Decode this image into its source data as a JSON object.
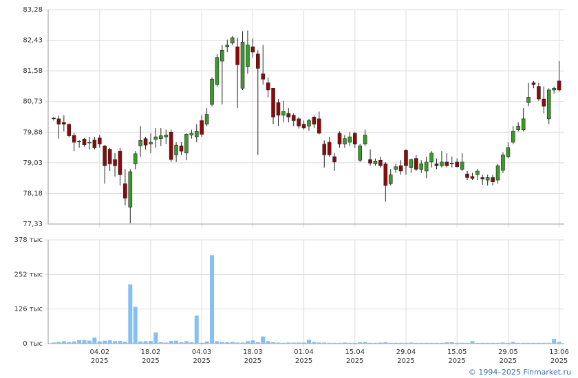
{
  "chart_data": [
    {
      "type": "candlestick",
      "up_color": "#3a9a2a",
      "down_color": "#8b0b0b",
      "grid": true,
      "ylim": [
        77.33,
        83.28
      ],
      "yticks": [
        {
          "value": 77.33,
          "label": "77,33"
        },
        {
          "value": 78.18,
          "label": "78,18"
        },
        {
          "value": 79.03,
          "label": "79,03"
        },
        {
          "value": 79.88,
          "label": "79,88"
        },
        {
          "value": 80.73,
          "label": "80,73"
        },
        {
          "value": 81.58,
          "label": "81,58"
        },
        {
          "value": 82.43,
          "label": "82,43"
        },
        {
          "value": 83.28,
          "label": "83,28"
        }
      ],
      "open": [
        80.27,
        80.25,
        80.15,
        80.1,
        79.79,
        79.63,
        79.69,
        79.58,
        79.66,
        79.72,
        79.5,
        79.4,
        79.12,
        79.35,
        78.45,
        77.8,
        79.0,
        79.5,
        79.7,
        79.55,
        79.68,
        79.7,
        79.75,
        79.88,
        79.25,
        79.5,
        79.3,
        79.8,
        79.75,
        80.2,
        80.1,
        80.65,
        81.2,
        81.85,
        82.25,
        82.35,
        82.25,
        81.1,
        81.7,
        82.25,
        82.05,
        81.5,
        81.25,
        81.1,
        80.7,
        80.35,
        80.4,
        80.35,
        80.25,
        80.1,
        80.05,
        80.3,
        80.25,
        79.55,
        79.6,
        79.2,
        79.85,
        79.55,
        79.6,
        79.85,
        79.1,
        79.55,
        79.12,
        79.0,
        79.1,
        79.0,
        78.45,
        78.85,
        78.95,
        79.38,
        78.9,
        79.15,
        78.85,
        78.8,
        79.05,
        79.0,
        78.95,
        79.05,
        79.0,
        79.05,
        78.85,
        78.72,
        78.65,
        78.7,
        78.62,
        78.55,
        78.62,
        78.55,
        78.82,
        79.2,
        79.6,
        79.95,
        79.95,
        80.7,
        81.25,
        81.15,
        80.8,
        80.25,
        81.05,
        81.3
      ],
      "high": [
        80.3,
        80.34,
        80.35,
        80.12,
        79.86,
        79.66,
        79.72,
        79.75,
        79.75,
        79.8,
        79.52,
        79.45,
        79.3,
        79.45,
        78.85,
        78.85,
        79.35,
        80.05,
        79.75,
        79.85,
        80.0,
        80.0,
        79.95,
        79.95,
        79.6,
        79.6,
        79.85,
        79.95,
        80.1,
        80.35,
        80.55,
        81.4,
        82.05,
        82.3,
        82.45,
        82.55,
        82.5,
        82.68,
        82.7,
        82.48,
        82.15,
        82.3,
        81.4,
        81.1,
        80.8,
        80.75,
        80.55,
        80.4,
        80.3,
        80.2,
        80.25,
        80.35,
        80.45,
        79.65,
        79.75,
        79.3,
        79.9,
        79.8,
        79.88,
        79.88,
        79.55,
        79.95,
        79.4,
        79.15,
        79.2,
        79.05,
        78.85,
        79.0,
        79.1,
        79.4,
        79.15,
        79.25,
        79.1,
        79.2,
        79.35,
        79.15,
        79.35,
        79.3,
        79.2,
        79.15,
        79.3,
        78.8,
        78.75,
        78.85,
        78.7,
        78.7,
        78.7,
        79.0,
        79.32,
        79.6,
        80.05,
        80.15,
        80.55,
        81.25,
        81.3,
        81.25,
        81.15,
        81.1,
        81.15,
        81.85
      ],
      "low": [
        80.2,
        79.7,
        79.9,
        79.74,
        79.35,
        79.45,
        79.48,
        79.4,
        79.4,
        79.45,
        78.45,
        78.8,
        78.65,
        78.4,
        77.85,
        77.35,
        78.85,
        79.2,
        79.4,
        79.3,
        79.45,
        79.5,
        79.55,
        79.05,
        79.05,
        79.25,
        79.1,
        79.7,
        79.6,
        79.75,
        80.05,
        80.6,
        81.15,
        80.65,
        82.1,
        82.3,
        80.55,
        81.05,
        81.5,
        81.95,
        79.25,
        81.2,
        80.85,
        80.1,
        80.05,
        80.15,
        80.15,
        80.05,
        79.98,
        79.95,
        79.92,
        80.0,
        79.82,
        78.9,
        79.2,
        78.8,
        79.45,
        79.45,
        79.5,
        79.45,
        79.05,
        79.5,
        78.95,
        78.95,
        78.9,
        77.95,
        78.4,
        78.75,
        78.7,
        78.7,
        78.75,
        78.8,
        78.75,
        78.6,
        78.9,
        78.85,
        78.9,
        78.9,
        78.9,
        78.9,
        78.8,
        78.55,
        78.55,
        78.55,
        78.42,
        78.4,
        78.4,
        78.45,
        78.75,
        79.15,
        79.55,
        79.9,
        79.9,
        80.6,
        81.1,
        80.75,
        80.4,
        80.1,
        80.95,
        81.0
      ],
      "close": [
        80.25,
        80.1,
        80.1,
        79.78,
        79.6,
        79.62,
        79.53,
        79.6,
        79.45,
        79.55,
        78.95,
        79.0,
        78.95,
        78.7,
        78.05,
        78.78,
        79.28,
        79.65,
        79.52,
        79.6,
        79.75,
        79.78,
        79.8,
        79.12,
        79.52,
        79.35,
        79.82,
        79.85,
        79.9,
        79.82,
        80.37,
        81.35,
        81.95,
        82.15,
        82.3,
        82.5,
        81.75,
        82.38,
        82.3,
        82.1,
        81.65,
        81.35,
        81.05,
        80.3,
        80.35,
        80.45,
        80.3,
        80.2,
        80.05,
        80.0,
        80.2,
        80.1,
        79.85,
        79.25,
        79.25,
        79.05,
        79.55,
        79.7,
        79.75,
        79.55,
        79.5,
        79.8,
        79.02,
        79.08,
        78.95,
        78.4,
        78.7,
        78.92,
        78.8,
        78.95,
        79.12,
        78.85,
        79.0,
        79.05,
        79.3,
        78.95,
        79.05,
        78.95,
        79.02,
        78.92,
        79.05,
        78.62,
        78.6,
        78.8,
        78.58,
        78.62,
        78.5,
        78.95,
        79.25,
        79.45,
        79.9,
        80.05,
        80.25,
        80.85,
        81.2,
        80.8,
        80.6,
        81.05,
        81.1,
        81.05
      ]
    },
    {
      "type": "bar",
      "color": "#86c0ee",
      "grid": true,
      "ylim": [
        0,
        378
      ],
      "yticks": [
        {
          "value": 0,
          "label": "0 тыс"
        },
        {
          "value": 126,
          "label": "126 тыс"
        },
        {
          "value": 252,
          "label": "252 тыс"
        },
        {
          "value": 378,
          "label": "378 тыс"
        }
      ],
      "categories": [
        null,
        null,
        null,
        null,
        null,
        null,
        null,
        null,
        null,
        "04.02\n2025",
        null,
        null,
        null,
        null,
        null,
        null,
        null,
        null,
        null,
        "18.02\n2025",
        null,
        null,
        null,
        null,
        null,
        null,
        null,
        null,
        null,
        "04.03\n2025",
        null,
        null,
        null,
        null,
        null,
        null,
        null,
        null,
        null,
        "18.03\n2025",
        null,
        null,
        null,
        null,
        null,
        null,
        null,
        null,
        null,
        "01.04\n2025",
        null,
        null,
        null,
        null,
        null,
        null,
        null,
        null,
        null,
        "15.04\n2025",
        null,
        null,
        null,
        null,
        null,
        null,
        null,
        null,
        null,
        "29.04\n2025",
        null,
        null,
        null,
        null,
        null,
        null,
        null,
        null,
        null,
        "15.05\n2025",
        null,
        null,
        null,
        null,
        null,
        null,
        null,
        null,
        null,
        "29.05\n2025",
        null,
        null,
        null,
        null,
        null,
        null,
        null,
        null,
        null,
        "13.06\n2025"
      ],
      "values": [
        4,
        6,
        9,
        6,
        8,
        13,
        13,
        11,
        22,
        8,
        11,
        12,
        9,
        10,
        7,
        216,
        134,
        8,
        9,
        10,
        41,
        5,
        4,
        10,
        11,
        5,
        9,
        5,
        102,
        3,
        8,
        322,
        9,
        6,
        5,
        6,
        4,
        4,
        9,
        12,
        5,
        26,
        9,
        5,
        4,
        3,
        4,
        4,
        4,
        4,
        14,
        6,
        4,
        4,
        3,
        3,
        3,
        4,
        3,
        3,
        5,
        6,
        3,
        3,
        4,
        5,
        3,
        3,
        3,
        3,
        4,
        3,
        3,
        3,
        3,
        3,
        3,
        5,
        5,
        3,
        3,
        3,
        9,
        3,
        3,
        3,
        3,
        3,
        4,
        3,
        6,
        3,
        3,
        3,
        3,
        3,
        3,
        3,
        17,
        6
      ]
    }
  ],
  "copyright": "© 1994–2025 Finmarket.ru"
}
